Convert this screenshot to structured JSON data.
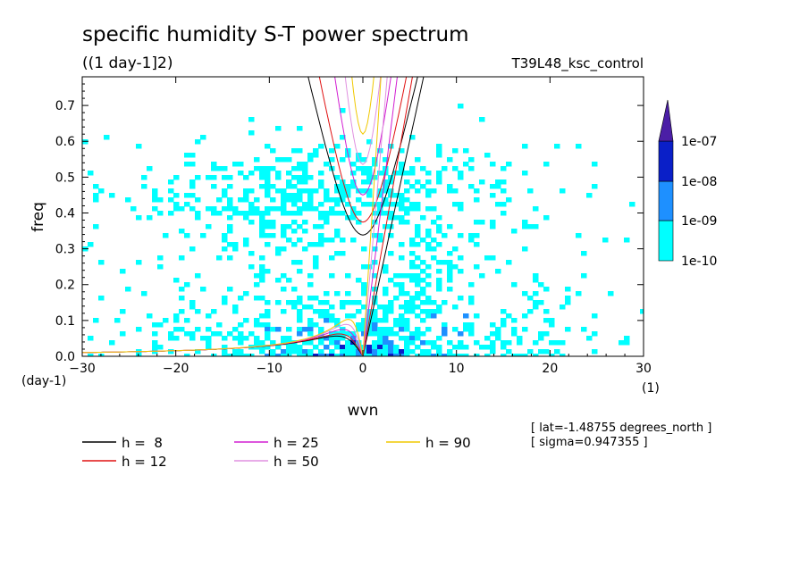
{
  "chart_data": {
    "type": "heatmap",
    "title": "specific humidity S-T power spectrum",
    "subtitle": "((1 day-1]2)",
    "run_label": "T39L48_ksc_control",
    "xlabel": "wvn",
    "ylabel": "freq",
    "x_unit": "(1)",
    "y_unit": "(day-1)",
    "xlim": [
      -30,
      30
    ],
    "ylim": [
      0,
      0.78
    ],
    "x_ticks": [
      -30,
      -20,
      -10,
      0,
      10,
      20,
      30
    ],
    "y_ticks": [
      0.0,
      0.1,
      0.2,
      0.3,
      0.4,
      0.5,
      0.6,
      0.7
    ],
    "grid": false,
    "colorbar": {
      "labels": [
        "1e-10",
        "1e-09",
        "1e-08",
        "1e-07"
      ],
      "colors": [
        "#00ffff",
        "#1e90ff",
        "#0a1fc8",
        "#4b1ea6"
      ]
    },
    "dispersion_curves": [
      {
        "name": "h =  8",
        "h": 8,
        "color": "#000000"
      },
      {
        "name": "h = 12",
        "h": 12,
        "color": "#e01010"
      },
      {
        "name": "h = 25",
        "h": 25,
        "color": "#d21ed2"
      },
      {
        "name": "h = 50",
        "h": 50,
        "color": "#e090e0"
      },
      {
        "name": "h = 90",
        "h": 90,
        "color": "#f0c800"
      }
    ],
    "annotations": [
      "[ lat=-1.48755 degrees_north ]",
      "[ sigma=0.947355 ]"
    ]
  }
}
